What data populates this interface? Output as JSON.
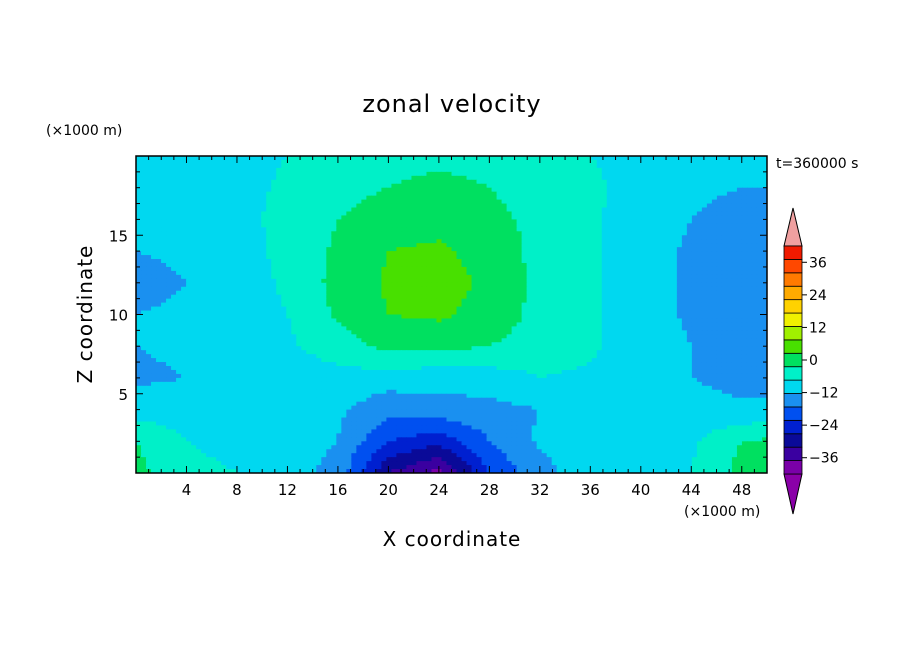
{
  "chart_data": {
    "type": "heatmap",
    "title": "zonal velocity",
    "xlabel": "X coordinate",
    "ylabel": "Z coordinate",
    "x_unit": "(×1000 m)",
    "y_unit": "(×1000 m)",
    "time_label": "t=360000 s",
    "xlim": [
      0,
      50
    ],
    "ylim": [
      0,
      20
    ],
    "x_ticks": [
      4,
      8,
      12,
      16,
      20,
      24,
      28,
      32,
      36,
      40,
      44,
      48
    ],
    "y_ticks": [
      5,
      10,
      15
    ],
    "colorbar": {
      "min": -42,
      "max": 42,
      "step": 6,
      "tick_values": [
        36,
        24,
        12,
        0,
        -12,
        -24,
        -36
      ],
      "tick_labels": [
        "36",
        "24",
        "12",
        "0",
        "−12",
        "−24",
        "−36"
      ],
      "colors": [
        "#7a00a8",
        "#3a00a0",
        "#0a0a98",
        "#0020d0",
        "#0050f0",
        "#1a90f0",
        "#00d8f0",
        "#00f0c8",
        "#00e060",
        "#48e000",
        "#a0f000",
        "#f0f000",
        "#ffd200",
        "#ffaa00",
        "#ff7a00",
        "#ff4800",
        "#f01a00"
      ],
      "under_color": "#8a00a8",
      "over_color": "#f0a0a0"
    },
    "grid": {
      "x": [
        0,
        4,
        8,
        12,
        16,
        20,
        24,
        28,
        32,
        36,
        40,
        44,
        48,
        50
      ],
      "z": [
        0,
        2,
        4,
        6,
        8,
        10,
        12,
        14,
        16,
        18,
        20
      ],
      "values": [
        [
          8,
          1,
          0,
          -4,
          -8,
          -30,
          -38,
          -18,
          -8,
          -3,
          -3,
          0,
          8,
          9
        ],
        [
          6,
          0,
          -1,
          -3,
          -6,
          -18,
          -22,
          -12,
          -5,
          -3,
          -4,
          -1,
          6,
          7
        ],
        [
          -3,
          -3,
          -1,
          -2,
          -5,
          -10,
          -8,
          -8,
          -6,
          -3,
          -2,
          -4,
          -5,
          -5
        ],
        [
          -7,
          -6,
          -4,
          -3,
          -2,
          -3,
          -4,
          -3,
          0,
          -1,
          -3,
          -6,
          -8,
          -8
        ],
        [
          -6,
          -5,
          -3,
          -1,
          3,
          8,
          8,
          6,
          3,
          1,
          -3,
          -6,
          -8,
          -8
        ],
        [
          -6,
          -5,
          -3,
          0,
          7,
          12,
          13,
          10,
          4,
          1,
          -3,
          -7,
          -9,
          -9
        ],
        [
          -8,
          -6,
          -3,
          1,
          8,
          13,
          14,
          11,
          4,
          1,
          -3,
          -7,
          -12,
          -11
        ],
        [
          -6,
          -5,
          -3,
          2,
          7,
          12,
          13,
          10,
          4,
          1,
          -3,
          -7,
          -11,
          -9
        ],
        [
          -6,
          -5,
          -2,
          2,
          6,
          9,
          10,
          8,
          4,
          1,
          -3,
          -6,
          -8,
          -7
        ],
        [
          -6,
          -4,
          -2,
          1,
          4,
          6,
          7,
          6,
          3,
          1,
          -2,
          -5,
          -6,
          -6
        ],
        [
          -6,
          -5,
          -2,
          0,
          3,
          5,
          5,
          5,
          2,
          0,
          -2,
          -5,
          -6,
          -6
        ]
      ]
    }
  }
}
